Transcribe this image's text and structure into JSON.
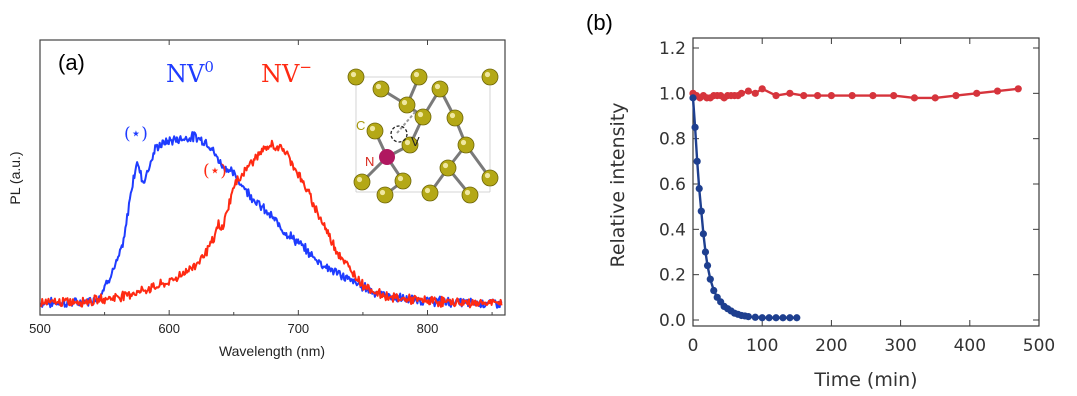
{
  "panel_a_label": "(a)",
  "panel_b_label": "(b)",
  "colors": {
    "nv0": "#1f3cff",
    "nvm": "#ff2a12",
    "red_b": "#d6343c",
    "blue_b": "#1e3f8f",
    "inset_atom": "#b4a816",
    "inset_n": "#b01860"
  },
  "annotations": {
    "nv0_base": "NV",
    "nv0_sup": "0",
    "nvm_base": "NV",
    "nvm_sup": "−",
    "star_nv0": "(⋆)",
    "star_nvm": "(⋆)"
  },
  "inset": {
    "c_label": "C",
    "n_label": "N",
    "v_label": "V"
  },
  "chart_data": [
    {
      "type": "line",
      "panel": "(a)",
      "xlabel": "Wavelength (nm)",
      "ylabel": "PL (a.u.)",
      "xlim": [
        500,
        860
      ],
      "ylim": [
        0,
        1.0
      ],
      "xticks": [
        500,
        600,
        700,
        800
      ],
      "series": [
        {
          "name": "NV⁰",
          "x": [
            500,
            530,
            545,
            560,
            565,
            570,
            575,
            580,
            590,
            600,
            610,
            620,
            630,
            640,
            650,
            660,
            670,
            680,
            690,
            700,
            710,
            720,
            740,
            760,
            780,
            800,
            830,
            860
          ],
          "y": [
            0.0,
            0.0,
            0.02,
            0.2,
            0.3,
            0.52,
            0.68,
            0.58,
            0.75,
            0.78,
            0.79,
            0.8,
            0.77,
            0.67,
            0.62,
            0.54,
            0.47,
            0.41,
            0.34,
            0.29,
            0.23,
            0.18,
            0.11,
            0.05,
            0.02,
            0.01,
            0.0,
            0.0
          ]
        },
        {
          "name": "NV⁻",
          "x": [
            500,
            540,
            560,
            580,
            600,
            620,
            630,
            635,
            638,
            640,
            643,
            650,
            660,
            670,
            680,
            690,
            700,
            710,
            720,
            730,
            740,
            750,
            760,
            770,
            780,
            800,
            830,
            860
          ],
          "y": [
            0.0,
            0.01,
            0.03,
            0.06,
            0.1,
            0.18,
            0.26,
            0.31,
            0.38,
            0.34,
            0.4,
            0.56,
            0.65,
            0.72,
            0.76,
            0.73,
            0.62,
            0.5,
            0.37,
            0.25,
            0.16,
            0.09,
            0.05,
            0.03,
            0.02,
            0.01,
            0.0,
            0.0
          ]
        }
      ]
    },
    {
      "type": "line",
      "panel": "(b)",
      "xlabel": "Time (min)",
      "ylabel": "Relative intensity",
      "xlim": [
        0,
        500
      ],
      "ylim": [
        0,
        1.2
      ],
      "xticks": [
        0,
        100,
        200,
        300,
        400,
        500
      ],
      "yticks": [
        0.0,
        0.2,
        0.4,
        0.6,
        0.8,
        1.0,
        1.2
      ],
      "series": [
        {
          "x": [
            0,
            5,
            10,
            15,
            20,
            25,
            30,
            35,
            40,
            45,
            50,
            55,
            60,
            65,
            70,
            80,
            90,
            100,
            120,
            140,
            160,
            180,
            200,
            230,
            260,
            290,
            320,
            350,
            380,
            410,
            440,
            470
          ],
          "y": [
            1.0,
            0.99,
            0.98,
            0.99,
            0.98,
            0.98,
            0.99,
            0.99,
            0.99,
            0.98,
            0.99,
            0.99,
            0.99,
            0.99,
            1.0,
            1.01,
            1.0,
            1.02,
            0.99,
            1.0,
            0.99,
            0.99,
            0.99,
            0.99,
            0.99,
            0.99,
            0.98,
            0.98,
            0.99,
            1.0,
            1.01,
            1.02
          ]
        },
        {
          "x": [
            0,
            3,
            6,
            9,
            12,
            15,
            18,
            21,
            25,
            30,
            35,
            40,
            45,
            50,
            55,
            60,
            65,
            70,
            75,
            80,
            90,
            100,
            110,
            120,
            130,
            140,
            150
          ],
          "y": [
            0.98,
            0.85,
            0.7,
            0.58,
            0.48,
            0.38,
            0.3,
            0.24,
            0.18,
            0.13,
            0.1,
            0.08,
            0.06,
            0.05,
            0.04,
            0.03,
            0.025,
            0.02,
            0.018,
            0.015,
            0.012,
            0.01,
            0.01,
            0.01,
            0.01,
            0.01,
            0.01
          ]
        }
      ]
    }
  ]
}
